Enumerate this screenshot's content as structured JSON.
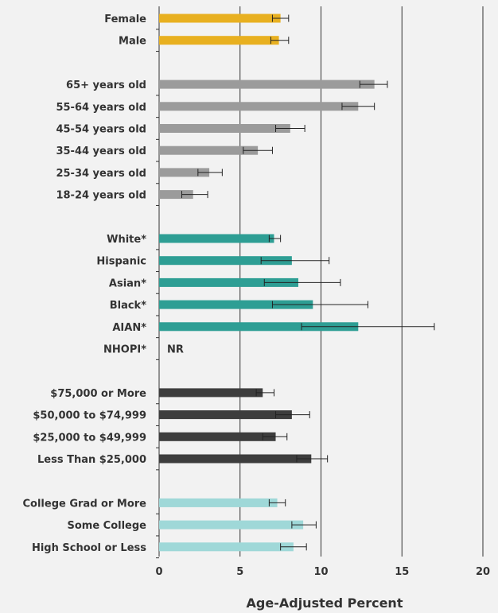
{
  "chart_data": {
    "type": "bar",
    "orientation": "horizontal",
    "xlabel": "Age-Adjusted Percent",
    "xlim": [
      0,
      20
    ],
    "xticks": [
      0,
      5,
      10,
      15,
      20
    ],
    "grid": true,
    "groups": [
      {
        "color": "#e8b020",
        "items": [
          {
            "label": "Female",
            "value": 7.5,
            "ci": [
              7.0,
              8.0
            ]
          },
          {
            "label": "Male",
            "value": 7.4,
            "ci": [
              6.9,
              8.0
            ]
          }
        ]
      },
      {
        "color": "#9b9b9b",
        "items": [
          {
            "label": "65+ years old",
            "value": 13.3,
            "ci": [
              12.4,
              14.1
            ]
          },
          {
            "label": "55-64 years old",
            "value": 12.3,
            "ci": [
              11.3,
              13.3
            ]
          },
          {
            "label": "45-54 years old",
            "value": 8.1,
            "ci": [
              7.2,
              9.0
            ]
          },
          {
            "label": "35-44 years old",
            "value": 6.1,
            "ci": [
              5.2,
              7.0
            ]
          },
          {
            "label": "25-34 years old",
            "value": 3.1,
            "ci": [
              2.4,
              3.9
            ]
          },
          {
            "label": "18-24 years old",
            "value": 2.1,
            "ci": [
              1.4,
              3.0
            ]
          }
        ]
      },
      {
        "color": "#2e9e94",
        "items": [
          {
            "label": "White*",
            "value": 7.1,
            "ci": [
              6.8,
              7.5
            ]
          },
          {
            "label": "Hispanic",
            "value": 8.2,
            "ci": [
              6.3,
              10.5
            ]
          },
          {
            "label": "Asian*",
            "value": 8.6,
            "ci": [
              6.5,
              11.2
            ]
          },
          {
            "label": "Black*",
            "value": 9.5,
            "ci": [
              7.0,
              12.9
            ]
          },
          {
            "label": "AIAN*",
            "value": 12.3,
            "ci": [
              8.8,
              17.0
            ]
          },
          {
            "label": "NHOPI*",
            "value": null,
            "note": "NR"
          }
        ]
      },
      {
        "color": "#3d3d3d",
        "items": [
          {
            "label": "$75,000 or More",
            "value": 6.4,
            "ci": [
              6.0,
              7.1
            ]
          },
          {
            "label": "$50,000 to $74,999",
            "value": 8.2,
            "ci": [
              7.2,
              9.3
            ]
          },
          {
            "label": "$25,000 to $49,999",
            "value": 7.2,
            "ci": [
              6.4,
              7.9
            ]
          },
          {
            "label": "Less Than $25,000",
            "value": 9.4,
            "ci": [
              8.5,
              10.4
            ]
          }
        ]
      },
      {
        "color": "#9fd8d8",
        "items": [
          {
            "label": "College Grad or More",
            "value": 7.3,
            "ci": [
              6.8,
              7.8
            ]
          },
          {
            "label": "Some College",
            "value": 8.9,
            "ci": [
              8.2,
              9.7
            ]
          },
          {
            "label": "High School or Less",
            "value": 8.3,
            "ci": [
              7.5,
              9.1
            ]
          }
        ]
      }
    ]
  }
}
